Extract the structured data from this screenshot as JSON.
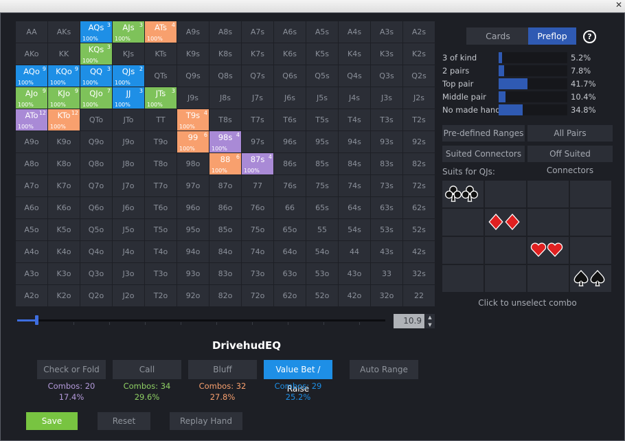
{
  "window": {
    "close_glyph": "✕"
  },
  "tabs": {
    "cards": "Cards",
    "preflop": "Preflop",
    "help": "?"
  },
  "grid": [
    [
      {
        "n": "AA"
      },
      {
        "n": "AKs"
      },
      {
        "n": "AQs",
        "c": "value",
        "k": "3",
        "p": "100%"
      },
      {
        "n": "AJs",
        "c": "call",
        "k": "3",
        "p": "100%"
      },
      {
        "n": "ATs",
        "c": "bluff",
        "k": "4",
        "p": "100%"
      },
      {
        "n": "A9s"
      },
      {
        "n": "A8s"
      },
      {
        "n": "A7s"
      },
      {
        "n": "A6s"
      },
      {
        "n": "A5s"
      },
      {
        "n": "A4s"
      },
      {
        "n": "A3s"
      },
      {
        "n": "A2s"
      }
    ],
    [
      {
        "n": "AKo"
      },
      {
        "n": "KK"
      },
      {
        "n": "KQs",
        "c": "call",
        "k": "3",
        "p": "100%"
      },
      {
        "n": "KJs"
      },
      {
        "n": "KTs"
      },
      {
        "n": "K9s"
      },
      {
        "n": "K8s"
      },
      {
        "n": "K7s"
      },
      {
        "n": "K6s"
      },
      {
        "n": "K5s"
      },
      {
        "n": "K4s"
      },
      {
        "n": "K3s"
      },
      {
        "n": "K2s"
      }
    ],
    [
      {
        "n": "AQo",
        "c": "value",
        "k": "9",
        "p": "100%"
      },
      {
        "n": "KQo",
        "c": "value",
        "k": "9",
        "p": "100%"
      },
      {
        "n": "QQ",
        "c": "value",
        "k": "3",
        "p": "100%"
      },
      {
        "n": "QJs",
        "c": "value",
        "k": "2",
        "p": "100%"
      },
      {
        "n": "QTs"
      },
      {
        "n": "Q9s"
      },
      {
        "n": "Q8s"
      },
      {
        "n": "Q7s"
      },
      {
        "n": "Q6s"
      },
      {
        "n": "Q5s"
      },
      {
        "n": "Q4s"
      },
      {
        "n": "Q3s"
      },
      {
        "n": "Q2s"
      }
    ],
    [
      {
        "n": "AJo",
        "c": "call",
        "k": "9",
        "p": "100%"
      },
      {
        "n": "KJo",
        "c": "call",
        "k": "9",
        "p": "100%"
      },
      {
        "n": "QJo",
        "c": "call",
        "k": "7",
        "p": "100%"
      },
      {
        "n": "JJ",
        "c": "value",
        "k": "3",
        "p": "100%"
      },
      {
        "n": "JTs",
        "c": "call",
        "k": "3",
        "p": "100%"
      },
      {
        "n": "J9s"
      },
      {
        "n": "J8s"
      },
      {
        "n": "J7s"
      },
      {
        "n": "J6s"
      },
      {
        "n": "J5s"
      },
      {
        "n": "J4s"
      },
      {
        "n": "J3s"
      },
      {
        "n": "J2s"
      }
    ],
    [
      {
        "n": "ATo",
        "c": "fold",
        "k": "12",
        "p": "100%"
      },
      {
        "n": "KTo",
        "c": "bluff",
        "k": "12",
        "p": "100%"
      },
      {
        "n": "QTo"
      },
      {
        "n": "JTo"
      },
      {
        "n": "TT"
      },
      {
        "n": "T9s",
        "c": "bluff",
        "k": "4",
        "p": "100%"
      },
      {
        "n": "T8s"
      },
      {
        "n": "T7s"
      },
      {
        "n": "T6s"
      },
      {
        "n": "T5s"
      },
      {
        "n": "T4s"
      },
      {
        "n": "T3s"
      },
      {
        "n": "T2s"
      }
    ],
    [
      {
        "n": "A9o"
      },
      {
        "n": "K9o"
      },
      {
        "n": "Q9o"
      },
      {
        "n": "J9o"
      },
      {
        "n": "T9o"
      },
      {
        "n": "99",
        "c": "bluff",
        "k": "6",
        "p": "100%"
      },
      {
        "n": "98s",
        "c": "fold",
        "k": "4",
        "p": "100%"
      },
      {
        "n": "97s"
      },
      {
        "n": "96s"
      },
      {
        "n": "95s"
      },
      {
        "n": "94s"
      },
      {
        "n": "93s"
      },
      {
        "n": "92s"
      }
    ],
    [
      {
        "n": "A8o"
      },
      {
        "n": "K8o"
      },
      {
        "n": "Q8o"
      },
      {
        "n": "J8o"
      },
      {
        "n": "T8o"
      },
      {
        "n": "98o"
      },
      {
        "n": "88",
        "c": "bluff",
        "k": "6",
        "p": "100%"
      },
      {
        "n": "87s",
        "c": "fold",
        "k": "4",
        "p": "100%"
      },
      {
        "n": "86s"
      },
      {
        "n": "85s"
      },
      {
        "n": "84s"
      },
      {
        "n": "83s"
      },
      {
        "n": "82s"
      }
    ],
    [
      {
        "n": "A7o"
      },
      {
        "n": "K7o"
      },
      {
        "n": "Q7o"
      },
      {
        "n": "J7o"
      },
      {
        "n": "T7o"
      },
      {
        "n": "97o"
      },
      {
        "n": "87o"
      },
      {
        "n": "77"
      },
      {
        "n": "76s"
      },
      {
        "n": "75s"
      },
      {
        "n": "74s"
      },
      {
        "n": "73s"
      },
      {
        "n": "72s"
      }
    ],
    [
      {
        "n": "A6o"
      },
      {
        "n": "K6o"
      },
      {
        "n": "Q6o"
      },
      {
        "n": "J6o"
      },
      {
        "n": "T6o"
      },
      {
        "n": "96o"
      },
      {
        "n": "86o"
      },
      {
        "n": "76o"
      },
      {
        "n": "66"
      },
      {
        "n": "65s"
      },
      {
        "n": "64s"
      },
      {
        "n": "63s"
      },
      {
        "n": "62s"
      }
    ],
    [
      {
        "n": "A5o"
      },
      {
        "n": "K5o"
      },
      {
        "n": "Q5o"
      },
      {
        "n": "J5o"
      },
      {
        "n": "T5o"
      },
      {
        "n": "95o"
      },
      {
        "n": "85o"
      },
      {
        "n": "75o"
      },
      {
        "n": "65o"
      },
      {
        "n": "55"
      },
      {
        "n": "54s"
      },
      {
        "n": "53s"
      },
      {
        "n": "52s"
      }
    ],
    [
      {
        "n": "A4o"
      },
      {
        "n": "K4o"
      },
      {
        "n": "Q4o"
      },
      {
        "n": "J4o"
      },
      {
        "n": "T4o"
      },
      {
        "n": "94o"
      },
      {
        "n": "84o"
      },
      {
        "n": "74o"
      },
      {
        "n": "64o"
      },
      {
        "n": "54o"
      },
      {
        "n": "44"
      },
      {
        "n": "43s"
      },
      {
        "n": "42s"
      }
    ],
    [
      {
        "n": "A3o"
      },
      {
        "n": "K3o"
      },
      {
        "n": "Q3o"
      },
      {
        "n": "J3o"
      },
      {
        "n": "T3o"
      },
      {
        "n": "93o"
      },
      {
        "n": "83o"
      },
      {
        "n": "73o"
      },
      {
        "n": "63o"
      },
      {
        "n": "53o"
      },
      {
        "n": "43o"
      },
      {
        "n": "33"
      },
      {
        "n": "32s"
      }
    ],
    [
      {
        "n": "A2o"
      },
      {
        "n": "K2o"
      },
      {
        "n": "Q2o"
      },
      {
        "n": "J2o"
      },
      {
        "n": "T2o"
      },
      {
        "n": "92o"
      },
      {
        "n": "82o"
      },
      {
        "n": "72o"
      },
      {
        "n": "62o"
      },
      {
        "n": "52o"
      },
      {
        "n": "42o"
      },
      {
        "n": "32o"
      },
      {
        "n": "22"
      }
    ]
  ],
  "colors": {
    "value": "#1e8fe6",
    "call": "#7ec25a",
    "bluff": "#f8a06e",
    "fold": "#a98ad6",
    "value_text": "#1e8fe6",
    "call_text": "#8fd064",
    "bluff_text": "#f8a06e",
    "fold_text": "#b59bdc",
    "hearts": "#e02020",
    "diamonds": "#e02020",
    "clubs": "#111111",
    "spades": "#111111"
  },
  "slider": {
    "value": "10.9",
    "position": 0.1,
    "up_glyph": "▲",
    "down_glyph": "▼"
  },
  "profile_title": "DrivehudEQ",
  "actions": [
    {
      "id": "check-or-fold",
      "label": "Check or Fold",
      "combos": "Combos: 20",
      "pct": "17.4%",
      "color": "fold",
      "active": false
    },
    {
      "id": "call",
      "label": "Call",
      "combos": "Combos: 34",
      "pct": "29.6%",
      "color": "call",
      "active": false
    },
    {
      "id": "bluff",
      "label": "Bluff",
      "combos": "Combos: 32",
      "pct": "27.8%",
      "color": "bluff",
      "active": false
    },
    {
      "id": "value-bet-raise",
      "label": "Value Bet / Raise",
      "combos": "Combos: 29",
      "pct": "25.2%",
      "color": "value",
      "active": true
    },
    {
      "id": "auto-range",
      "label": "Auto Range",
      "active": false
    }
  ],
  "bottom_buttons": {
    "save": "Save",
    "reset": "Reset",
    "replay": "Replay Hand"
  },
  "hand_stats": [
    {
      "label": "3 of kind",
      "value": "5.2%",
      "fraction": 0.052
    },
    {
      "label": "2 pairs",
      "value": "7.8%",
      "fraction": 0.078
    },
    {
      "label": "Top pair",
      "value": "41.7%",
      "fraction": 0.417
    },
    {
      "label": "Middle pair",
      "value": "10.4%",
      "fraction": 0.104
    },
    {
      "label": "No made hand",
      "value": "34.8%",
      "fraction": 0.348
    }
  ],
  "presets": {
    "predefined": "Pre-defined Ranges",
    "all_pairs": "All Pairs",
    "suited_connectors": "Suited Connectors",
    "off_suited": "Off Suited Connectors"
  },
  "suits": {
    "label": "Suits for QJs:",
    "hint": "Click to unselect combo",
    "combos": [
      {
        "row": 0,
        "col": 0,
        "suit": "clubs",
        "icon": "clubs-icon"
      },
      {
        "row": 1,
        "col": 1,
        "suit": "diamonds",
        "icon": "diamonds-icon"
      },
      {
        "row": 2,
        "col": 2,
        "suit": "hearts",
        "icon": "hearts-icon"
      },
      {
        "row": 3,
        "col": 3,
        "suit": "spades",
        "icon": "spades-icon"
      }
    ]
  }
}
